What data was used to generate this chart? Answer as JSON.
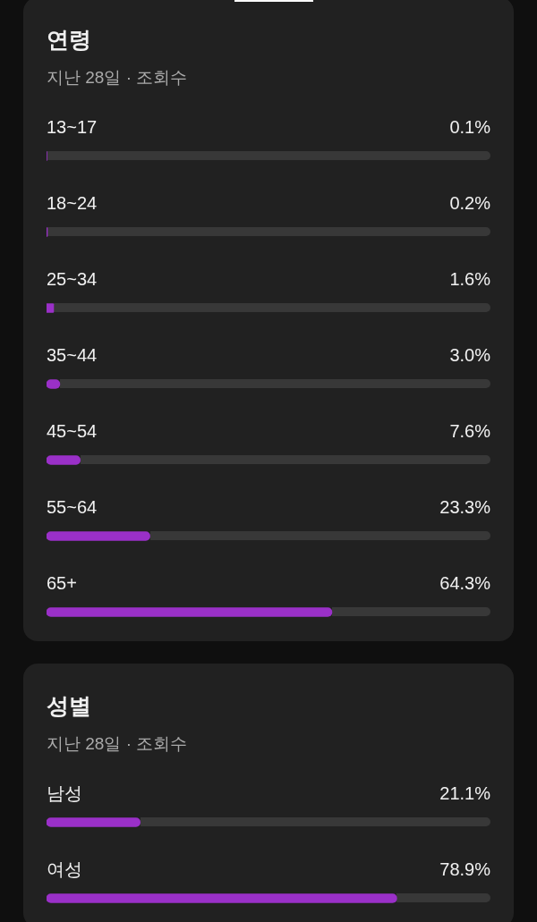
{
  "chart_data": [
    {
      "type": "bar",
      "orientation": "horizontal",
      "title": "연령",
      "subtitle": "지난 28일 · 조회수",
      "categories": [
        "13~17",
        "18~24",
        "25~34",
        "35~44",
        "45~54",
        "55~64",
        "65+"
      ],
      "values": [
        0.1,
        0.2,
        1.6,
        3.0,
        7.6,
        23.3,
        64.3
      ],
      "value_labels": [
        "0.1%",
        "0.2%",
        "1.6%",
        "3.0%",
        "7.6%",
        "23.3%",
        "64.3%"
      ],
      "color": "#9a30c8",
      "xlim": [
        0,
        100
      ],
      "tick_labels": "y"
    },
    {
      "type": "bar",
      "orientation": "horizontal",
      "title": "성별",
      "subtitle": "지난 28일 · 조회수",
      "categories": [
        "남성",
        "여성"
      ],
      "values": [
        21.1,
        78.9
      ],
      "value_labels": [
        "21.1%",
        "78.9%"
      ],
      "color": "#9a30c8",
      "xlim": [
        0,
        100
      ],
      "tick_labels": "y"
    }
  ]
}
